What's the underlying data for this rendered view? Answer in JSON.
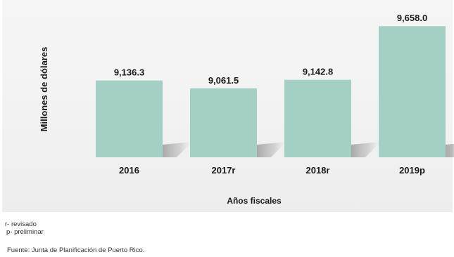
{
  "chart_data": {
    "type": "bar",
    "categories": [
      "2016",
      "2017r",
      "2018r",
      "2019p"
    ],
    "values": [
      9136.3,
      9061.5,
      9142.8,
      9658.0
    ],
    "value_labels": [
      "9,136.3",
      "9,061.5",
      "9,142.8",
      "9,658.0"
    ],
    "xlabel": "Años fiscales",
    "ylabel": "Millones de dólares",
    "bar_color": "#a3cfc4",
    "shadow_color": "#7a7a7a",
    "grid": false,
    "ylim": [
      8400,
      9700
    ]
  },
  "notes": [
    "r- revisado",
    "p- preliminar"
  ],
  "source": "Fuente: Junta de Planificación de Puerto Rico."
}
